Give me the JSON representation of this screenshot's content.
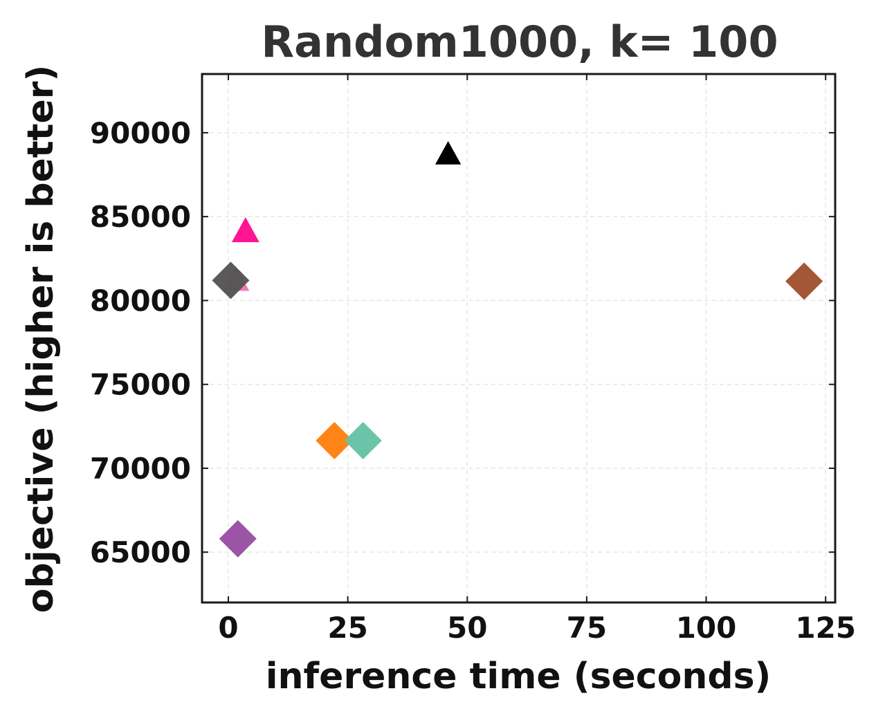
{
  "chart_data": {
    "type": "scatter",
    "title": "Random1000, k= 100",
    "xlabel": "inference time (seconds)",
    "ylabel": "objective (higher is better)",
    "xlim": [
      -5.5,
      127
    ],
    "ylim": [
      62000,
      93500
    ],
    "xticks": [
      0,
      25,
      50,
      75,
      100,
      125
    ],
    "yticks": [
      65000,
      70000,
      75000,
      80000,
      85000,
      90000
    ],
    "xtick_labels": [
      "0",
      "25",
      "50",
      "75",
      "100",
      "125"
    ],
    "ytick_labels": [
      "65000",
      "70000",
      "75000",
      "80000",
      "85000",
      "90000"
    ],
    "grid": true,
    "points": [
      {
        "x": 1.5,
        "y": 81200,
        "marker": "triangle",
        "color": "#f07ab8"
      },
      {
        "x": 0.5,
        "y": 81200,
        "marker": "diamond",
        "color": "#555555"
      },
      {
        "x": 3.6,
        "y": 84100,
        "marker": "triangle",
        "color": "#ff1493"
      },
      {
        "x": 46.0,
        "y": 88700,
        "marker": "triangle",
        "color": "#000000"
      },
      {
        "x": 120.5,
        "y": 81150,
        "marker": "diamond",
        "color": "#a0522d"
      },
      {
        "x": 22.2,
        "y": 71650,
        "marker": "diamond",
        "color": "#ff8010"
      },
      {
        "x": 28.2,
        "y": 71650,
        "marker": "diamond",
        "color": "#66c2a5"
      },
      {
        "x": 2.0,
        "y": 65800,
        "marker": "diamond",
        "color": "#984ea3"
      }
    ]
  }
}
